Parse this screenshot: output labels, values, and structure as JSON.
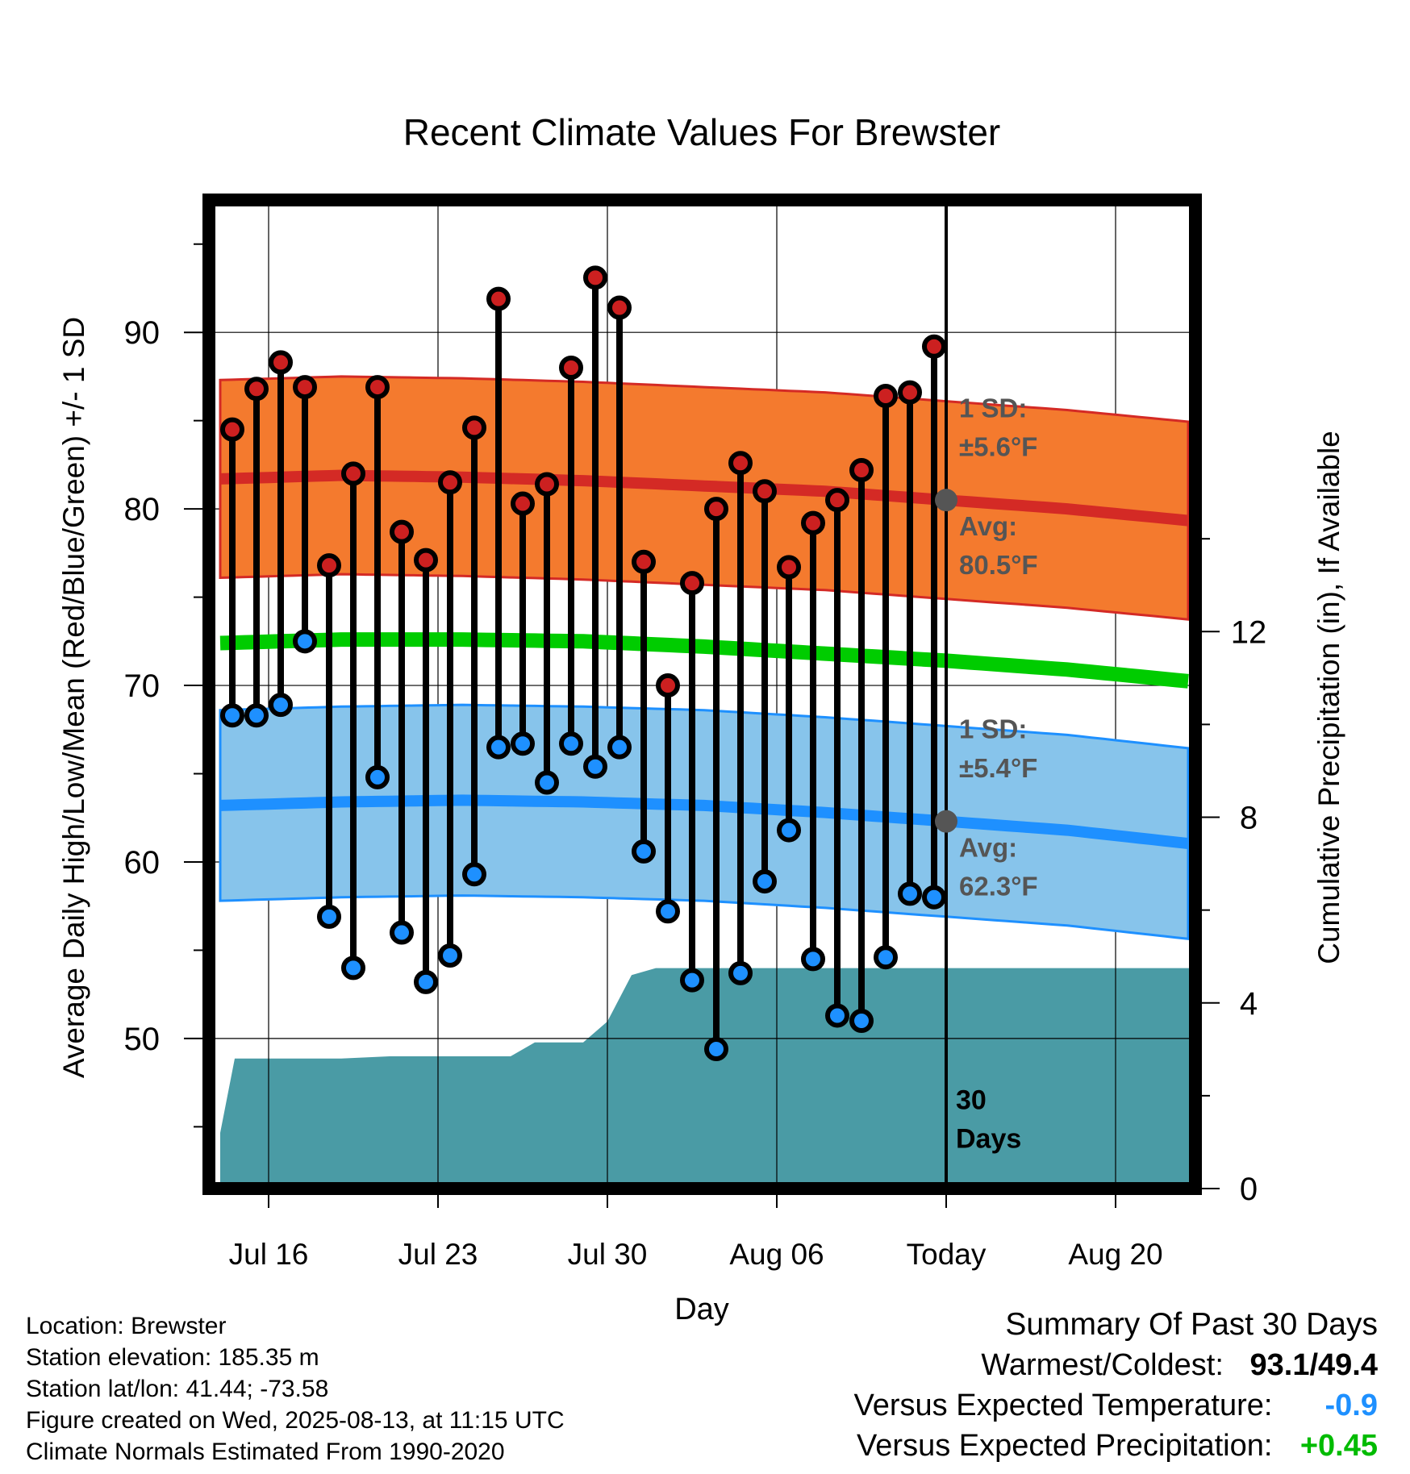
{
  "chart_data": {
    "type": "line",
    "title": "Recent Climate Values For Brewster",
    "xlabel": "Day",
    "ylabel": "Average Daily High/Low/Mean (Red/Blue/Green) +/- 1 SD",
    "y2label": "Cumulative Precipitation (in), If Available",
    "x_ticks": [
      "Jul 16",
      "Jul 23",
      "Jul 30",
      "Aug 06",
      "Today",
      "Aug 20"
    ],
    "y_ticks": [
      50,
      60,
      70,
      80,
      90
    ],
    "y2_ticks": [
      0,
      4,
      8,
      12
    ],
    "ylim": [
      41.5,
      97.5
    ],
    "y2lim": [
      0,
      21.3
    ],
    "xlim": [
      0,
      40.3
    ],
    "today_index": 30,
    "today_label": "30 Days",
    "grid": true,
    "days": [
      "Jul 14",
      "Jul 15",
      "Jul 16",
      "Jul 17",
      "Jul 18",
      "Jul 19",
      "Jul 20",
      "Jul 21",
      "Jul 22",
      "Jul 23",
      "Jul 24",
      "Jul 25",
      "Jul 26",
      "Jul 27",
      "Jul 28",
      "Jul 29",
      "Jul 30",
      "Jul 31",
      "Aug 01",
      "Aug 02",
      "Aug 03",
      "Aug 04",
      "Aug 05",
      "Aug 06",
      "Aug 07",
      "Aug 08",
      "Aug 09",
      "Aug 10",
      "Aug 11",
      "Aug 12"
    ],
    "series": [
      {
        "name": "High",
        "color": "#cc2020",
        "values": [
          84.5,
          86.8,
          88.3,
          86.9,
          76.8,
          82.0,
          86.9,
          78.7,
          77.1,
          81.5,
          84.6,
          91.9,
          80.3,
          81.4,
          88.0,
          93.1,
          91.4,
          77.0,
          70.0,
          75.8,
          80.0,
          82.6,
          81.0,
          76.7,
          79.2,
          80.5,
          82.2,
          86.4,
          86.6,
          89.2
        ]
      },
      {
        "name": "Low",
        "color": "#1e90ff",
        "values": [
          68.3,
          68.3,
          68.9,
          72.5,
          56.9,
          54.0,
          64.8,
          56.0,
          53.2,
          54.7,
          59.3,
          66.5,
          66.7,
          64.5,
          66.7,
          65.4,
          66.5,
          60.6,
          57.2,
          53.3,
          49.4,
          53.7,
          58.9,
          61.8,
          54.5,
          51.3,
          51.0,
          54.6,
          58.2,
          58.0
        ]
      }
    ],
    "normals": {
      "x": [
        0,
        5,
        10,
        15,
        20,
        25,
        30,
        35,
        40.3
      ],
      "high_avg": [
        81.7,
        81.9,
        81.8,
        81.6,
        81.3,
        81.0,
        80.5,
        80.0,
        79.3
      ],
      "high_sd": 5.6,
      "low_avg": [
        63.2,
        63.4,
        63.5,
        63.4,
        63.2,
        62.8,
        62.3,
        61.8,
        61.0
      ],
      "low_sd": 5.4,
      "mean_avg": [
        72.4,
        72.6,
        72.6,
        72.5,
        72.2,
        71.8,
        71.4,
        70.9,
        70.2
      ],
      "high_color": "#f47a2e",
      "high_line_color": "#d42a25",
      "low_color": "#87c4eb",
      "low_line_color": "#1e90ff",
      "mean_color": "#00cc00"
    },
    "precipitation": {
      "color": "#4a9ba5",
      "x": [
        0,
        0.6,
        1,
        5,
        7,
        12,
        13,
        14,
        15,
        16,
        17,
        18,
        19,
        30,
        40.3
      ],
      "values": [
        1.2,
        2.8,
        2.8,
        2.8,
        2.85,
        2.85,
        3.15,
        3.15,
        3.15,
        3.6,
        4.6,
        4.75,
        4.75,
        4.75,
        4.75
      ]
    },
    "annotations": {
      "high_sd_label": [
        "1 SD:",
        "±5.6°F"
      ],
      "high_avg_label": [
        "Avg:",
        "80.5°F"
      ],
      "low_sd_label": [
        "1 SD:",
        "±5.4°F"
      ],
      "low_avg_label": [
        "Avg:",
        "62.3°F"
      ],
      "high_avg_value": 80.5,
      "low_avg_value": 62.3,
      "text_color": "#555555"
    }
  },
  "info": {
    "location": "Location: Brewster",
    "elevation": "Station elevation: 185.35 m",
    "latlon": "Station lat/lon: 41.44; -73.58",
    "created": "Figure created on Wed, 2025-08-13, at 11:15 UTC",
    "normals": "Climate Normals Estimated From 1990-2020"
  },
  "summary": {
    "title": "Summary Of Past 30 Days",
    "warmest_label": "Warmest/Coldest:",
    "warmest_value": "93.1",
    "slash": "/",
    "coldest_value": "49.4",
    "temp_label": "Versus Expected Temperature:",
    "temp_value": "-0.9",
    "temp_color": "#1e90ff",
    "precip_label": "Versus Expected Precipitation:",
    "precip_value": "+0.45",
    "precip_color": "#00bb00"
  }
}
